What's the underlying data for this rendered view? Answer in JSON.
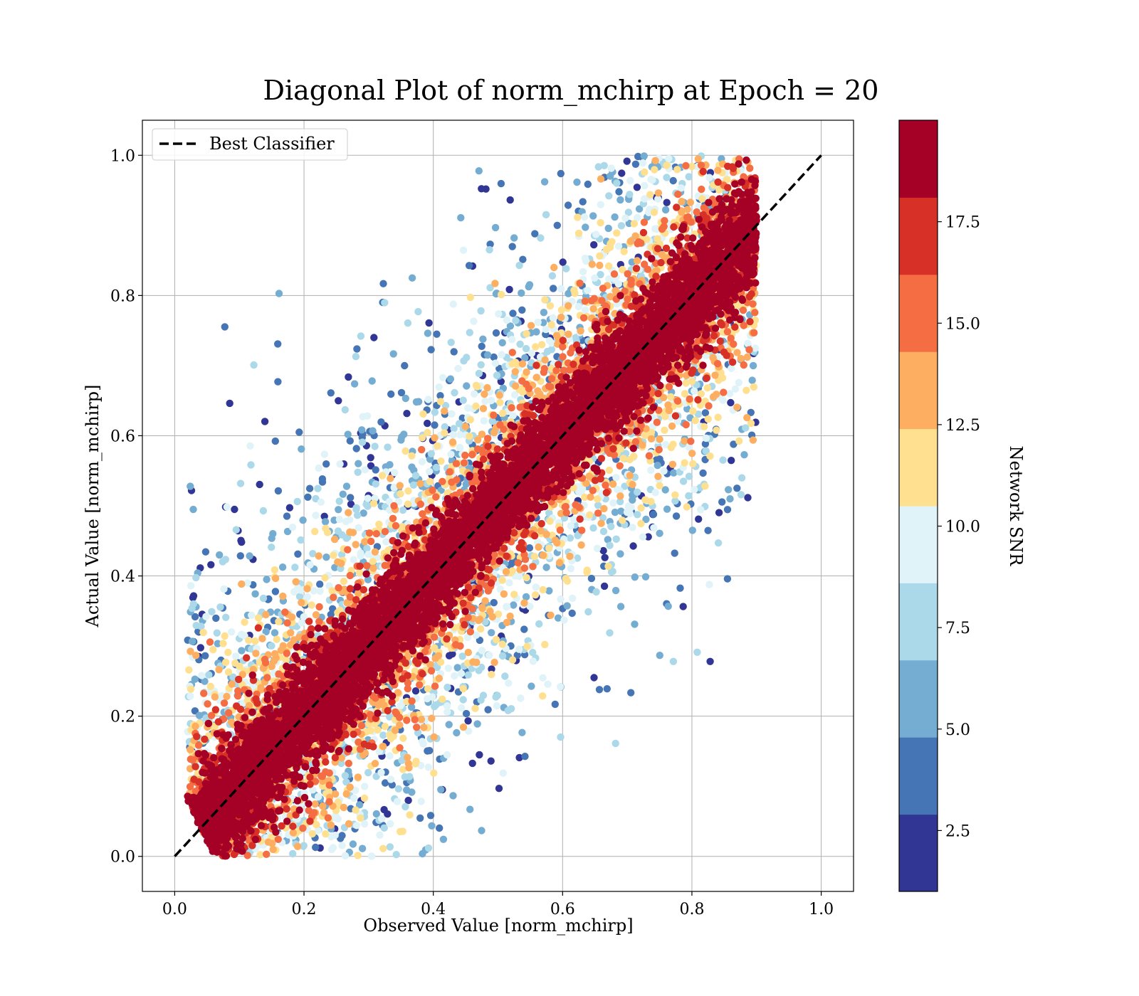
{
  "chart_data": {
    "type": "scatter",
    "title": "Diagonal Plot of norm_mchirp at Epoch = 20",
    "xlabel": "Observed Value [norm_mchirp]",
    "ylabel": "Actual Value [norm_mchirp]",
    "xlim": [
      -0.05,
      1.05
    ],
    "ylim": [
      -0.05,
      1.05
    ],
    "xticks": [
      "0.0",
      "0.2",
      "0.4",
      "0.6",
      "0.8",
      "1.0"
    ],
    "yticks": [
      "0.0",
      "0.2",
      "0.4",
      "0.6",
      "0.8",
      "1.0"
    ],
    "grid": true,
    "legend": {
      "placement": "top-left",
      "entries": [
        {
          "label": "Best Classifier",
          "style": "dashed",
          "color": "#000000"
        }
      ]
    },
    "reference_line": {
      "x": [
        0.0,
        1.0
      ],
      "y": [
        0.0,
        1.0
      ],
      "style": "dashed",
      "color": "#000000"
    },
    "colorbar": {
      "label": "Network SNR",
      "range": [
        1.0,
        20.0
      ],
      "ticks": [
        "2.5",
        "5.0",
        "7.5",
        "10.0",
        "12.5",
        "15.0",
        "17.5"
      ],
      "bins": [
        {
          "from": 1.0,
          "to": 2.9,
          "color": "#313695"
        },
        {
          "from": 2.9,
          "to": 4.8,
          "color": "#4575b4"
        },
        {
          "from": 4.8,
          "to": 6.7,
          "color": "#74add1"
        },
        {
          "from": 6.7,
          "to": 8.6,
          "color": "#abd9e9"
        },
        {
          "from": 8.6,
          "to": 10.5,
          "color": "#e0f3f8"
        },
        {
          "from": 10.5,
          "to": 12.4,
          "color": "#fee090"
        },
        {
          "from": 12.4,
          "to": 14.3,
          "color": "#fdae61"
        },
        {
          "from": 14.3,
          "to": 16.2,
          "color": "#f46d43"
        },
        {
          "from": 16.2,
          "to": 18.1,
          "color": "#d73027"
        },
        {
          "from": 18.1,
          "to": 20.0,
          "color": "#a50026"
        }
      ]
    },
    "series_color_by": "Network SNR",
    "point_cloud": {
      "description_of_distribution": "high-SNR points lie close to the diagonal; lower-SNR points spread further from it",
      "x_range": [
        0.02,
        0.9
      ],
      "y_range": [
        0.0,
        1.0
      ]
    }
  }
}
